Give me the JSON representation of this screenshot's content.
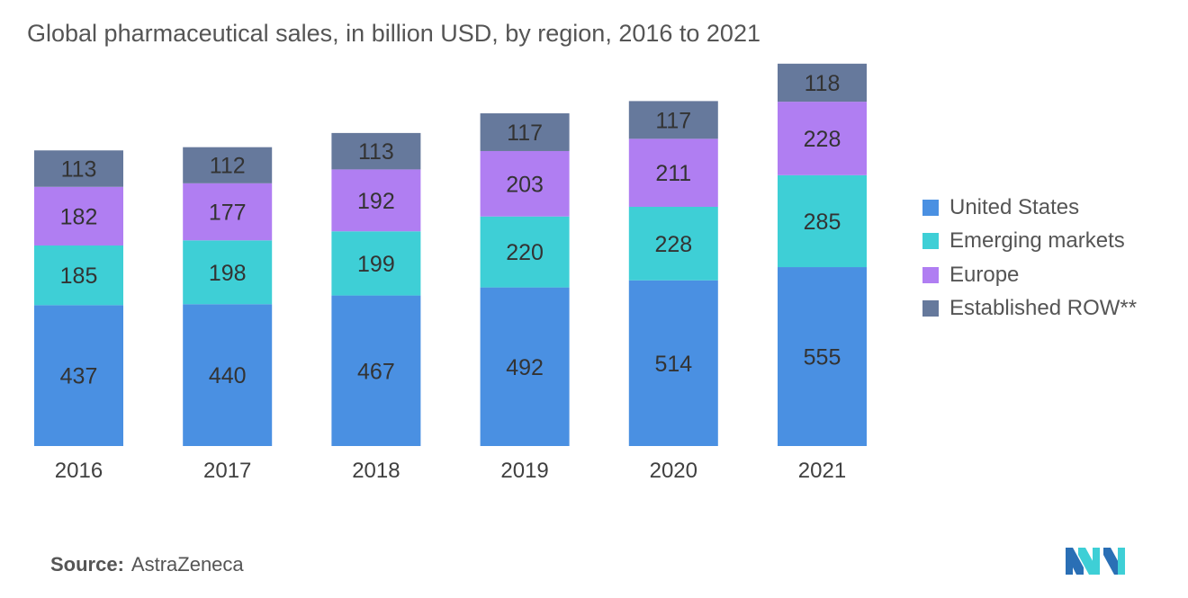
{
  "title": "Global pharmaceutical sales, in billion USD, by region, 2016 to 2021",
  "source": {
    "label": "Source:",
    "value": "AstraZeneca"
  },
  "colors": {
    "United States": "#4a90e2",
    "Emerging markets": "#3ecfd6",
    "Europe": "#b07ef2",
    "Established ROW**": "#66799c"
  },
  "chart_data": {
    "type": "bar",
    "stacked": true,
    "title": "Global pharmaceutical sales, in billion USD, by region, 2016 to 2021",
    "categories": [
      "2016",
      "2017",
      "2018",
      "2019",
      "2020",
      "2021"
    ],
    "series": [
      {
        "name": "United States",
        "values": [
          437,
          440,
          467,
          492,
          514,
          555
        ]
      },
      {
        "name": "Emerging markets",
        "values": [
          185,
          198,
          199,
          220,
          228,
          285
        ]
      },
      {
        "name": "Europe",
        "values": [
          182,
          177,
          192,
          203,
          211,
          228
        ]
      },
      {
        "name": "Established ROW**",
        "values": [
          113,
          112,
          113,
          117,
          117,
          118
        ]
      }
    ],
    "xlabel": "",
    "ylabel": "",
    "grid": false,
    "legend_position": "right",
    "data_labels": true
  }
}
